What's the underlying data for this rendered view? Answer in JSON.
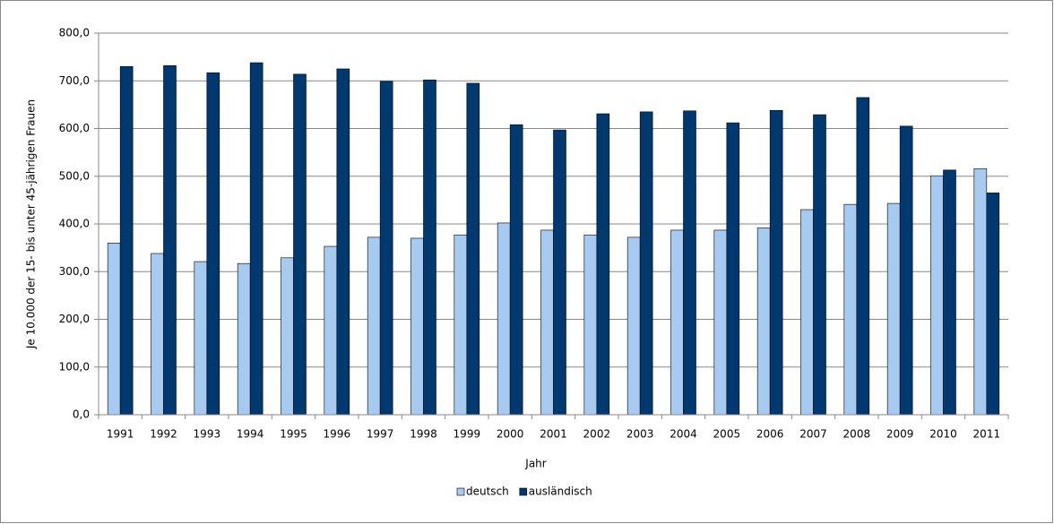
{
  "chart_data": {
    "type": "bar",
    "ylabel": "Je 10.000 der 15- bis unter 45-jährigen Frauen",
    "xlabel": "Jahr",
    "categories": [
      "1991",
      "1992",
      "1993",
      "1994",
      "1995",
      "1996",
      "1997",
      "1998",
      "1999",
      "2000",
      "2001",
      "2002",
      "2003",
      "2004",
      "2005",
      "2006",
      "2007",
      "2008",
      "2009",
      "2010",
      "2011"
    ],
    "series": [
      {
        "name": "deutsch",
        "color": "#a6caf0",
        "values": [
          360,
          338,
          321,
          317,
          329,
          353,
          372,
          370,
          377,
          402,
          387,
          377,
          372,
          387,
          387,
          392,
          430,
          441,
          443,
          501,
          516
        ]
      },
      {
        "name": "ausländisch",
        "color": "#003870",
        "values": [
          730,
          732,
          717,
          738,
          714,
          725,
          699,
          702,
          695,
          608,
          597,
          631,
          635,
          637,
          612,
          638,
          629,
          665,
          605,
          513,
          465
        ]
      }
    ],
    "ylim": [
      0,
      800
    ],
    "yticks": [
      {
        "value": 0,
        "label": "0,0"
      },
      {
        "value": 100,
        "label": "100,0"
      },
      {
        "value": 200,
        "label": "200,0"
      },
      {
        "value": 300,
        "label": "300,0"
      },
      {
        "value": 400,
        "label": "400,0"
      },
      {
        "value": 500,
        "label": "500,0"
      },
      {
        "value": 600,
        "label": "600,0"
      },
      {
        "value": 700,
        "label": "700,0"
      },
      {
        "value": 800,
        "label": "800,0"
      }
    ],
    "grid": true,
    "legend": "bottom"
  }
}
